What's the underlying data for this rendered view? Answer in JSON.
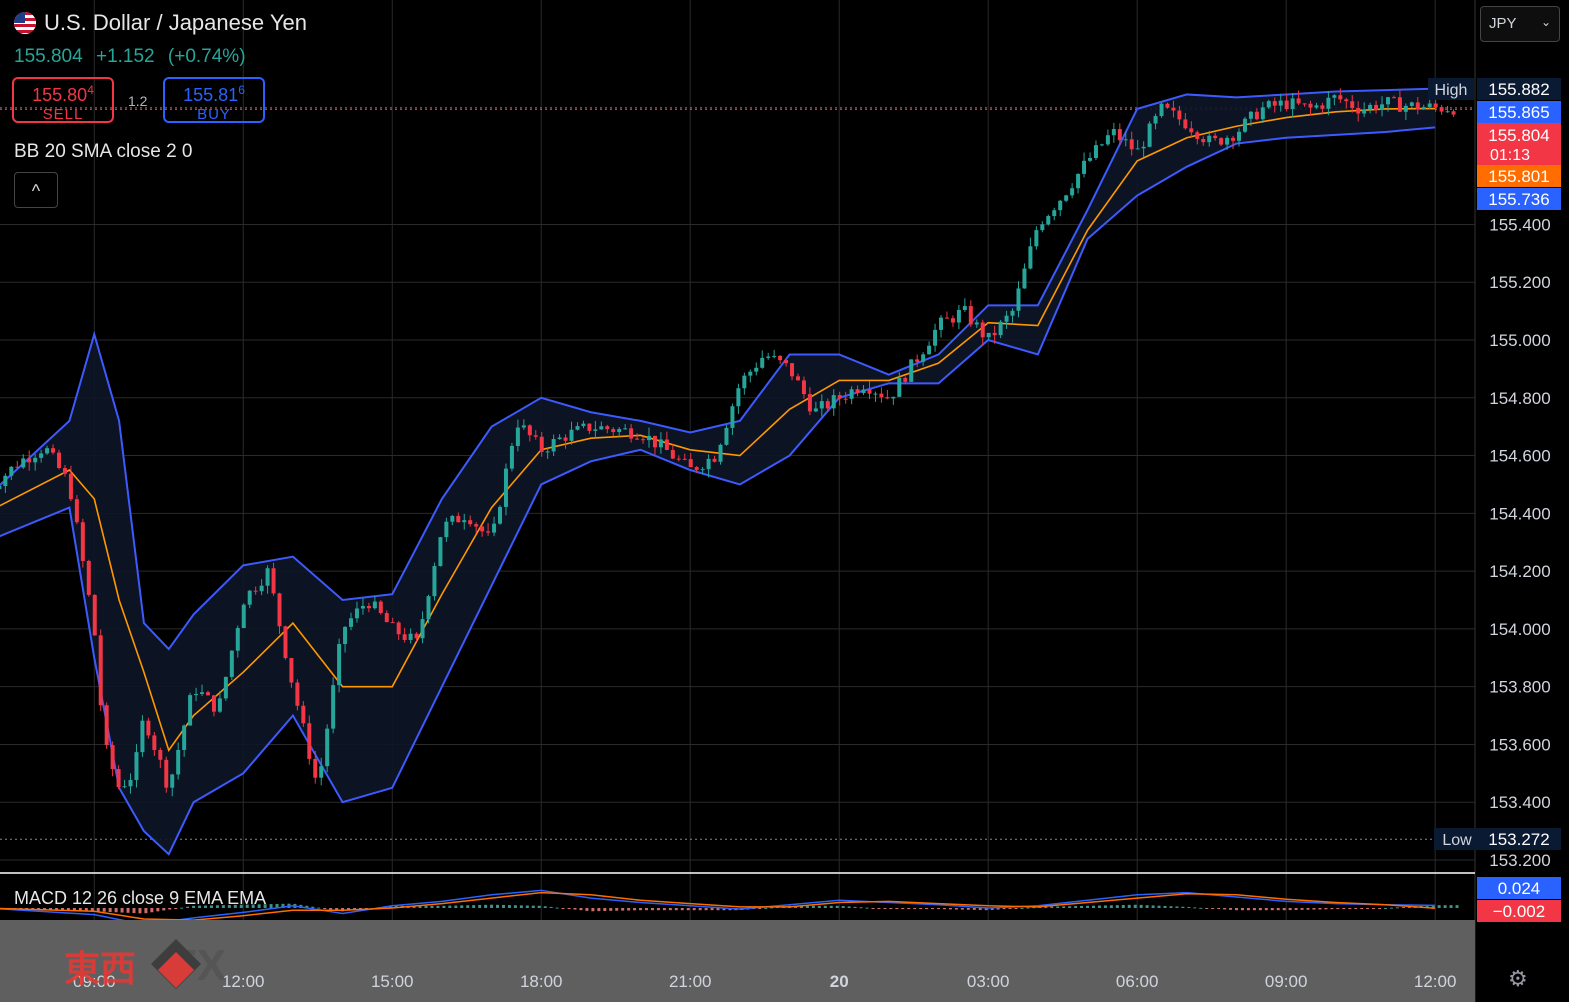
{
  "header": {
    "title": "U.S. Dollar / Japanese Yen",
    "last": "155.804",
    "change": "+1.152",
    "change_pct": "(+0.74%)"
  },
  "trade": {
    "sell_price_main": "155.80",
    "sell_price_sup": "4",
    "sell_label": "SELL",
    "buy_price_main": "155.81",
    "buy_price_sup": "6",
    "buy_label": "BUY",
    "spread": "1.2"
  },
  "indicators": {
    "bb_label": "BB 20 SMA close 2 0",
    "macd_label": "MACD 12 26 close 9 EMA EMA",
    "collapse_icon": "^"
  },
  "currency_select": {
    "value": "JPY"
  },
  "logo": {
    "kanji": "東西",
    "fx": "FX"
  },
  "colors": {
    "up": "#26a69a",
    "down": "#f23645",
    "bb_band": "#3d5afe",
    "sma": "#ff9800",
    "grid": "#2a2a2a"
  },
  "chart_data": {
    "type": "line",
    "symbol": "USDJPY",
    "ylim": [
      153.2,
      155.9
    ],
    "y_ticks": [
      "153.200",
      "153.400",
      "153.600",
      "153.800",
      "154.000",
      "154.200",
      "154.400",
      "154.600",
      "154.800",
      "155.000",
      "155.200",
      "155.400"
    ],
    "x_ticks": [
      "09:00",
      "12:00",
      "15:00",
      "18:00",
      "21:00",
      "20",
      "03:00",
      "06:00",
      "09:00",
      "12:00"
    ],
    "x_tick_hours": [
      0,
      3,
      6,
      9,
      12,
      15,
      18,
      21,
      24,
      27
    ],
    "x_range_hours": [
      -2.2,
      27.5
    ],
    "high": {
      "label": "High",
      "value": "155.882"
    },
    "low": {
      "label": "Low",
      "value": "153.272"
    },
    "price_labels": {
      "upper_band": "155.865",
      "last": "155.804",
      "countdown": "01:13",
      "sma": "155.801",
      "lower_band": "155.736"
    },
    "macd_labels": {
      "macd": "0.024",
      "signal": "−0.002"
    },
    "price_series": {
      "name": "",
      "x": [
        -2.2,
        -1.5,
        -1.0,
        -0.5,
        0.0,
        0.2,
        0.5,
        0.8,
        1.0,
        1.5,
        2.0,
        2.5,
        3.0,
        3.5,
        4.0,
        4.5,
        5.0,
        5.5,
        6.0,
        6.5,
        7.0,
        7.5,
        8.0,
        8.5,
        9.0,
        9.5,
        10.0,
        10.5,
        11.0,
        11.5,
        12.0,
        12.5,
        13.0,
        13.5,
        14.0,
        14.5,
        15.0,
        15.5,
        16.0,
        16.5,
        17.0,
        17.5,
        18.0,
        18.5,
        19.0,
        19.5,
        20.0,
        20.5,
        21.0,
        21.5,
        22.0,
        22.5,
        23.0,
        23.5,
        24.0,
        24.5,
        25.0,
        25.5,
        26.0,
        26.5,
        27.0,
        27.5
      ],
      "values": [
        154.47,
        154.58,
        154.63,
        154.5,
        154.0,
        153.6,
        153.45,
        153.5,
        153.7,
        153.45,
        153.8,
        153.72,
        154.1,
        154.2,
        153.8,
        153.45,
        154.0,
        154.1,
        154.0,
        153.95,
        154.35,
        154.4,
        154.3,
        154.72,
        154.62,
        154.67,
        154.7,
        154.69,
        154.68,
        154.62,
        154.55,
        154.6,
        154.85,
        154.95,
        154.9,
        154.75,
        154.8,
        154.85,
        154.8,
        154.92,
        155.05,
        155.1,
        155.0,
        155.1,
        155.4,
        155.5,
        155.62,
        155.72,
        155.65,
        155.8,
        155.75,
        155.68,
        155.72,
        155.8,
        155.82,
        155.8,
        155.84,
        155.8,
        155.82,
        155.81,
        155.804,
        155.804
      ]
    },
    "bb_upper": {
      "x": [
        -2.2,
        -0.5,
        0.0,
        0.5,
        1.0,
        1.5,
        2.0,
        3.0,
        4.0,
        5.0,
        6.0,
        7.0,
        8.0,
        9.0,
        10.0,
        11.0,
        12.0,
        13.0,
        14.0,
        15.0,
        16.0,
        17.0,
        18.0,
        19.0,
        20.0,
        21.0,
        22.0,
        23.0,
        24.0,
        25.0,
        26.0,
        27.0
      ],
      "values": [
        154.45,
        154.72,
        155.02,
        154.72,
        154.02,
        153.93,
        154.05,
        154.22,
        154.25,
        154.1,
        154.12,
        154.45,
        154.7,
        154.8,
        154.75,
        154.72,
        154.68,
        154.72,
        154.95,
        154.95,
        154.88,
        154.95,
        155.12,
        155.12,
        155.45,
        155.8,
        155.85,
        155.84,
        155.85,
        155.86,
        155.865,
        155.87
      ]
    },
    "bb_lower": {
      "x": [
        -2.2,
        -0.5,
        0.0,
        0.5,
        1.0,
        1.5,
        2.0,
        3.0,
        4.0,
        5.0,
        6.0,
        7.0,
        8.0,
        9.0,
        10.0,
        11.0,
        12.0,
        13.0,
        14.0,
        15.0,
        16.0,
        17.0,
        18.0,
        19.0,
        20.0,
        21.0,
        22.0,
        23.0,
        24.0,
        25.0,
        26.0,
        27.0
      ],
      "values": [
        154.3,
        154.42,
        153.9,
        153.45,
        153.3,
        153.22,
        153.4,
        153.5,
        153.7,
        153.4,
        153.45,
        153.8,
        154.15,
        154.5,
        154.58,
        154.62,
        154.55,
        154.5,
        154.6,
        154.8,
        154.85,
        154.85,
        155.0,
        154.95,
        155.35,
        155.5,
        155.6,
        155.68,
        155.7,
        155.71,
        155.72,
        155.736
      ]
    },
    "sma": {
      "x": [
        -2.2,
        -0.5,
        0.0,
        0.5,
        1.0,
        1.5,
        2.0,
        3.0,
        4.0,
        5.0,
        6.0,
        7.0,
        8.0,
        9.0,
        10.0,
        11.0,
        12.0,
        13.0,
        14.0,
        15.0,
        16.0,
        17.0,
        18.0,
        19.0,
        20.0,
        21.0,
        22.0,
        23.0,
        24.0,
        25.0,
        26.0,
        27.0
      ],
      "values": [
        154.4,
        154.55,
        154.45,
        154.1,
        153.85,
        153.58,
        153.7,
        153.85,
        154.02,
        153.8,
        153.8,
        154.12,
        154.42,
        154.62,
        154.66,
        154.67,
        154.62,
        154.6,
        154.76,
        154.86,
        154.86,
        154.92,
        155.06,
        155.05,
        155.38,
        155.62,
        155.7,
        155.74,
        155.77,
        155.79,
        155.8,
        155.801
      ]
    },
    "macd": {
      "x": [
        -2.2,
        0.0,
        1.0,
        2.0,
        3.0,
        4.0,
        5.0,
        6.0,
        7.0,
        8.0,
        9.0,
        10.0,
        11.0,
        12.0,
        13.0,
        14.0,
        15.0,
        16.0,
        17.0,
        18.0,
        19.0,
        20.0,
        21.0,
        22.0,
        23.0,
        24.0,
        25.0,
        26.0,
        27.0
      ],
      "values": [
        0.0,
        -0.06,
        -0.15,
        -0.09,
        -0.04,
        0.02,
        -0.05,
        0.02,
        0.06,
        0.12,
        0.16,
        0.09,
        0.05,
        0.02,
        -0.01,
        0.03,
        0.07,
        0.05,
        0.03,
        0.0,
        0.02,
        0.07,
        0.12,
        0.14,
        0.1,
        0.06,
        0.04,
        0.03,
        0.024
      ]
    },
    "signal": {
      "x": [
        -2.2,
        0.0,
        1.0,
        2.0,
        3.0,
        4.0,
        5.0,
        6.0,
        7.0,
        8.0,
        9.0,
        10.0,
        11.0,
        12.0,
        13.0,
        14.0,
        15.0,
        16.0,
        17.0,
        18.0,
        19.0,
        20.0,
        21.0,
        22.0,
        23.0,
        24.0,
        25.0,
        26.0,
        27.0
      ],
      "values": [
        0.0,
        -0.03,
        -0.1,
        -0.11,
        -0.07,
        -0.02,
        -0.02,
        0.0,
        0.04,
        0.09,
        0.14,
        0.12,
        0.07,
        0.04,
        0.01,
        0.01,
        0.05,
        0.06,
        0.04,
        0.02,
        0.01,
        0.05,
        0.09,
        0.13,
        0.12,
        0.08,
        0.05,
        0.03,
        -0.002
      ]
    }
  }
}
